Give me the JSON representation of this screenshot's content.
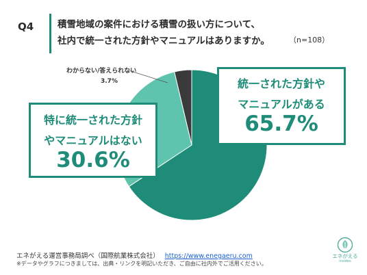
{
  "header": {
    "q_number": "Q4",
    "question_line1": "積雪地域の案件における積雪の扱い方について、",
    "question_line2": "社内で統一された方針やマニュアルはありますか。",
    "sample_note": "（n=108）"
  },
  "chart_data": {
    "type": "pie",
    "labels": [
      "統一された方針やマニュアルがある",
      "特に統一された方針やマニュアルはない",
      "わからない/答えられない"
    ],
    "values": [
      65.7,
      30.6,
      3.7
    ],
    "colors": [
      "#1e8c78",
      "#5ec4ad",
      "#3a3a3a"
    ],
    "callouts": [
      {
        "line1": "統一された方針や",
        "line2": "マニュアルがある",
        "pct": "65.7%"
      },
      {
        "line1": "特に統一された方針",
        "line2": "やマニュアルはない",
        "pct": "30.6%"
      }
    ],
    "small_label": "わからない/答えられない",
    "small_pct": "3.7%"
  },
  "footer": {
    "source": "エネがえる運営事務局調べ（国際航業株式会社）",
    "url": "https://www.enegaeru.com",
    "note": "※データやグラフにつきましては、出典・リンクを明記いただき、ご自由に社内外でご活用ください。"
  },
  "logo": {
    "name": "エネがえる",
    "sub": "insides",
    "accent": "#4fae9a"
  }
}
